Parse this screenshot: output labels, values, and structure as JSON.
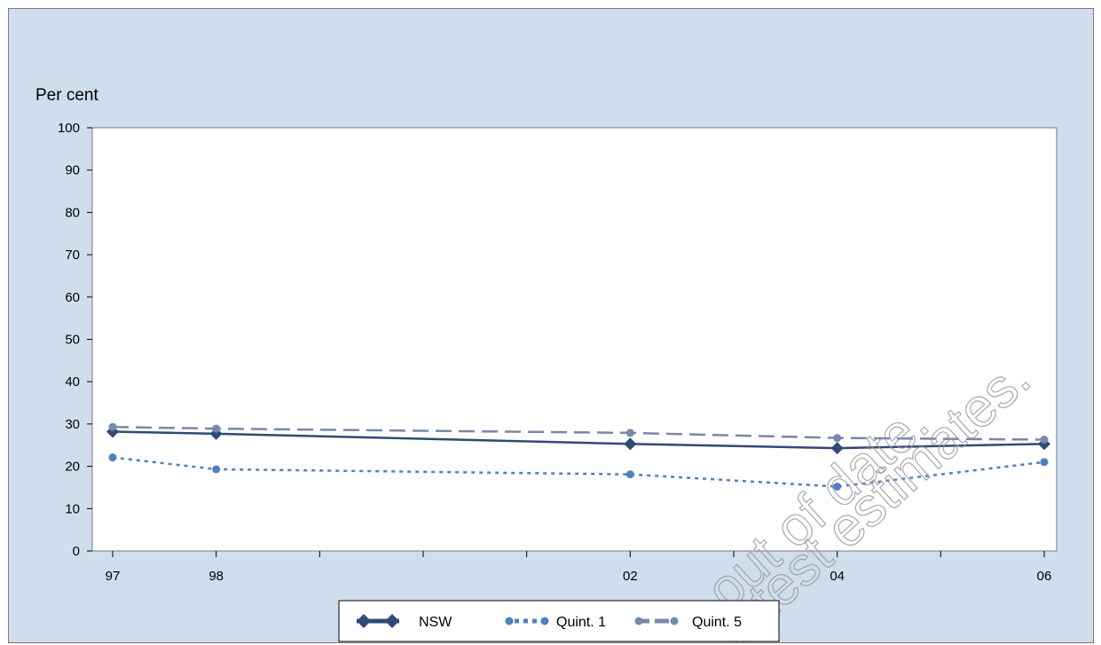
{
  "chart_data": {
    "type": "line",
    "ylabel": "Per cent",
    "xlabel": "",
    "ylim": [
      0,
      100
    ],
    "y_ticks": [
      0,
      10,
      20,
      30,
      40,
      50,
      60,
      70,
      80,
      90,
      100
    ],
    "x_range": [
      1997,
      2006
    ],
    "x_tick_years": [
      1997,
      1998,
      1999,
      2000,
      2001,
      2002,
      2003,
      2004,
      2005,
      2006
    ],
    "x_tick_labels": [
      {
        "year": 1997,
        "label": "97"
      },
      {
        "year": 1998,
        "label": "98"
      },
      {
        "year": 2002,
        "label": "02"
      },
      {
        "year": 2004,
        "label": "04"
      },
      {
        "year": 2006,
        "label": "06"
      }
    ],
    "grid": false,
    "legend_position": "bottom-center",
    "series": [
      {
        "name": "NSW",
        "style": "solid",
        "marker": "diamond",
        "color": "#2f4a78",
        "points": [
          {
            "x": 1997,
            "y": 28.2
          },
          {
            "x": 1998,
            "y": 27.7
          },
          {
            "x": 2002,
            "y": 25.3
          },
          {
            "x": 2004,
            "y": 24.3
          },
          {
            "x": 2006,
            "y": 25.3
          }
        ]
      },
      {
        "name": "Quint. 1",
        "style": "dotted",
        "marker": "circle",
        "color": "#4f7fc4",
        "points": [
          {
            "x": 1997,
            "y": 22.1
          },
          {
            "x": 1998,
            "y": 19.3
          },
          {
            "x": 2002,
            "y": 18.1
          },
          {
            "x": 2004,
            "y": 15.2
          },
          {
            "x": 2006,
            "y": 21.0
          }
        ]
      },
      {
        "name": "Quint. 5",
        "style": "dashed",
        "marker": "circle",
        "color": "#7589a8",
        "points": [
          {
            "x": 1997,
            "y": 29.3
          },
          {
            "x": 1998,
            "y": 28.9
          },
          {
            "x": 2002,
            "y": 27.9
          },
          {
            "x": 2004,
            "y": 26.7
          },
          {
            "x": 2006,
            "y": 26.3
          }
        ]
      }
    ]
  },
  "watermark": {
    "line1": "out of date.",
    "line2": "latest estimates."
  }
}
